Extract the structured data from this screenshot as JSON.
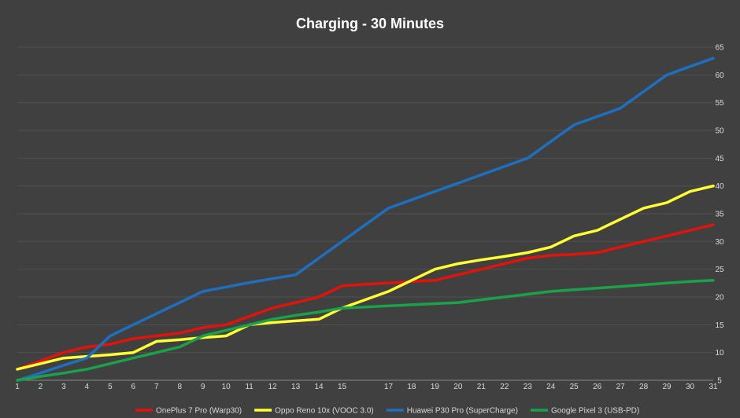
{
  "chart_data": {
    "type": "line",
    "title": "Charging - 30 Minutes",
    "xlabel": "",
    "ylabel": "",
    "x": [
      1,
      2,
      3,
      4,
      5,
      6,
      7,
      8,
      9,
      10,
      11,
      12,
      13,
      14,
      15,
      16,
      17,
      18,
      19,
      20,
      21,
      22,
      23,
      24,
      25,
      26,
      27,
      28,
      29,
      30,
      31
    ],
    "x_tick_labels": [
      "1",
      "2",
      "3",
      "4",
      "5",
      "6",
      "7",
      "8",
      "9",
      "10",
      "11",
      "12",
      "13",
      "14",
      "15",
      "17",
      "18",
      "19",
      "20",
      "21",
      "22",
      "23",
      "24",
      "25",
      "26",
      "27",
      "28",
      "29",
      "30",
      "31"
    ],
    "x_ticks": [
      1,
      2,
      3,
      4,
      5,
      6,
      7,
      8,
      9,
      10,
      11,
      12,
      13,
      14,
      15,
      17,
      18,
      19,
      20,
      21,
      22,
      23,
      24,
      25,
      26,
      27,
      28,
      29,
      30,
      31
    ],
    "ylim": [
      5,
      65
    ],
    "y_ticks": [
      5,
      10,
      15,
      20,
      25,
      30,
      35,
      40,
      45,
      50,
      55,
      60,
      65
    ],
    "y_axis_side": "right",
    "grid": true,
    "legend_position": "bottom",
    "series": [
      {
        "name": "OnePlus 7 Pro (Warp30)",
        "color": "#e3120b",
        "values": [
          7,
          8.5,
          10,
          11,
          11.5,
          12.5,
          13,
          13.5,
          14.5,
          15,
          16.5,
          18,
          19,
          20,
          22,
          22.3,
          22.5,
          22.8,
          23,
          24,
          25,
          26,
          27,
          27.5,
          27.7,
          28,
          29,
          30,
          31,
          32,
          33
        ]
      },
      {
        "name": "Oppo Reno 10x (VOOC 3.0)",
        "color": "#ffff33",
        "values": [
          7,
          8,
          9,
          9.3,
          9.6,
          10,
          12,
          12.3,
          12.7,
          13,
          15,
          15.4,
          15.7,
          16,
          18,
          19.5,
          21,
          23,
          25,
          26,
          26.7,
          27.3,
          28,
          29,
          31,
          32,
          34,
          36,
          37,
          39,
          40
        ]
      },
      {
        "name": "Huawei P30 Pro (SuperCharge)",
        "color": "#1f6fbf",
        "values": [
          5,
          6.3,
          7.7,
          9,
          13,
          15,
          17,
          19,
          21,
          21.8,
          22.6,
          23.3,
          24,
          27,
          30,
          33,
          36,
          37.5,
          39,
          40.5,
          42,
          43.5,
          45,
          48,
          51,
          52.5,
          54,
          57,
          60,
          61.5,
          63
        ]
      },
      {
        "name": "Google Pixel 3 (USB-PD)",
        "color": "#1aa14a",
        "values": [
          5,
          5.7,
          6.3,
          7,
          8,
          9,
          10,
          11,
          13,
          14,
          15,
          16,
          16.7,
          17.3,
          18,
          18.2,
          18.4,
          18.6,
          18.8,
          19,
          19.5,
          20,
          20.5,
          21,
          21.3,
          21.6,
          21.9,
          22.2,
          22.5,
          22.8,
          23
        ]
      }
    ]
  }
}
